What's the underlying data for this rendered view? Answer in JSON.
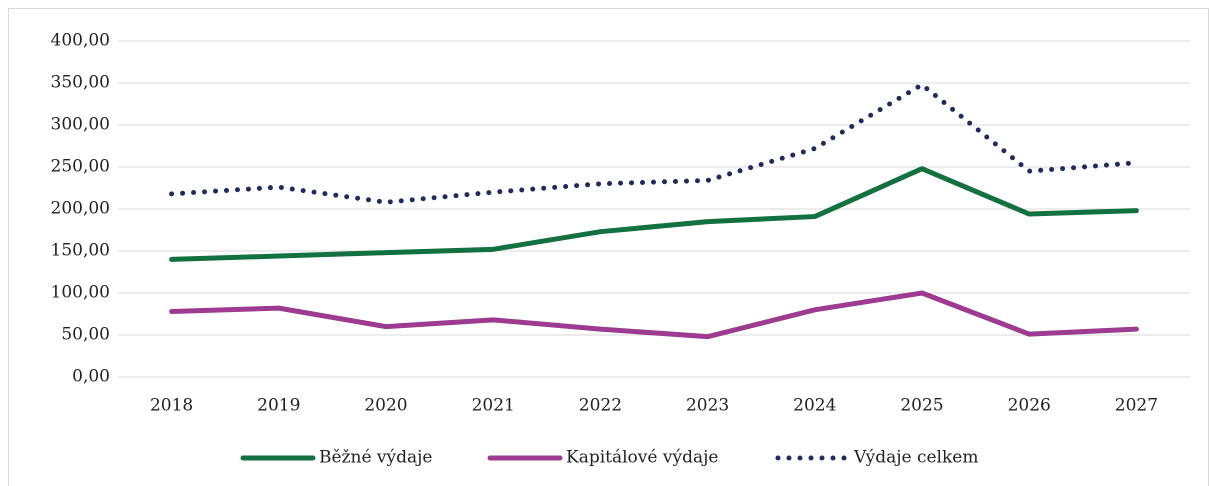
{
  "chart_data": {
    "type": "line",
    "categories": [
      "2018",
      "2019",
      "2020",
      "2021",
      "2022",
      "2023",
      "2024",
      "2025",
      "2026",
      "2027"
    ],
    "series": [
      {
        "name": "Běžné výdaje",
        "color": "#127041",
        "dash": "solid",
        "values": [
          140,
          144,
          148,
          152,
          173,
          185,
          191,
          248,
          194,
          198
        ]
      },
      {
        "name": "Kapitálové výdaje",
        "color": "#9c3b8f",
        "dash": "solid",
        "values": [
          78,
          82,
          60,
          68,
          57,
          48,
          80,
          100,
          51,
          57
        ]
      },
      {
        "name": "Výdaje celkem",
        "color": "#1f2a5e",
        "dash": "dotted",
        "values": [
          218,
          226,
          208,
          220,
          230,
          234,
          272,
          348,
          245,
          255
        ]
      }
    ],
    "ylim": [
      0,
      400
    ],
    "yticks": [
      {
        "value": 0,
        "label": "0,00"
      },
      {
        "value": 50,
        "label": "50,00"
      },
      {
        "value": 100,
        "label": "100,00"
      },
      {
        "value": 150,
        "label": "150,00"
      },
      {
        "value": 200,
        "label": "200,00"
      },
      {
        "value": 250,
        "label": "250,00"
      },
      {
        "value": 300,
        "label": "300,00"
      },
      {
        "value": 350,
        "label": "350,00"
      },
      {
        "value": 400,
        "label": "400,00"
      }
    ],
    "grid": true,
    "legend": "bottom"
  }
}
